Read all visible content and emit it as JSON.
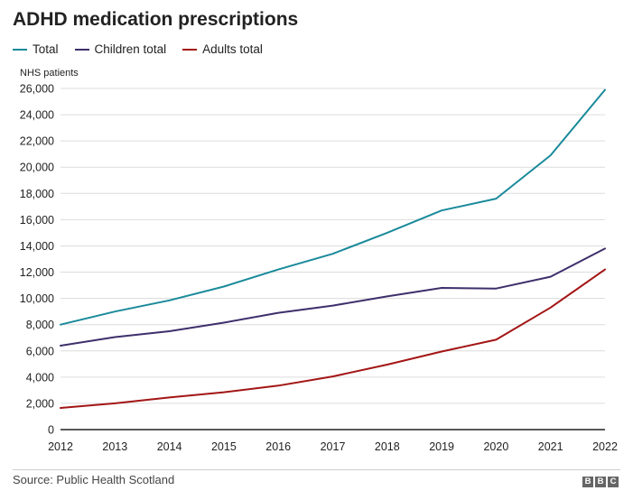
{
  "chart_data": {
    "type": "line",
    "title": "ADHD medication prescriptions",
    "ylabel": "NHS patients",
    "xlabel": "",
    "x": [
      2012,
      2013,
      2014,
      2015,
      2016,
      2017,
      2018,
      2019,
      2020,
      2021,
      2022
    ],
    "x_tick_labels": [
      "2012",
      "2013",
      "2014",
      "2015",
      "2016",
      "2017",
      "2018",
      "2019",
      "2020",
      "2021",
      "2022"
    ],
    "ylim": [
      0,
      26000
    ],
    "y_ticks": [
      0,
      2000,
      4000,
      6000,
      8000,
      10000,
      12000,
      14000,
      16000,
      18000,
      20000,
      22000,
      24000,
      26000
    ],
    "y_tick_labels": [
      "0",
      "2,000",
      "4,000",
      "6,000",
      "8,000",
      "10,000",
      "12,000",
      "14,000",
      "16,000",
      "18,000",
      "20,000",
      "22,000",
      "24,000",
      "26,000"
    ],
    "grid": true,
    "legend_position": "top-left",
    "series": [
      {
        "name": "Total",
        "color": "#1a8a9b",
        "values": [
          8000,
          9000,
          9850,
          10900,
          12200,
          13400,
          15000,
          16700,
          17600,
          20900,
          25900
        ]
      },
      {
        "name": "Children total",
        "color": "#3e2f6b",
        "values": [
          6400,
          7050,
          7500,
          8150,
          8900,
          9450,
          10150,
          10800,
          10750,
          11650,
          13800
        ]
      },
      {
        "name": "Adults total",
        "color": "#a31515",
        "values": [
          1650,
          2000,
          2450,
          2850,
          3350,
          4050,
          4950,
          5950,
          6850,
          9300,
          12200
        ]
      }
    ]
  },
  "footer": {
    "source": "Source: Public Health Scotland",
    "logo_letters": [
      "B",
      "B",
      "C"
    ]
  }
}
